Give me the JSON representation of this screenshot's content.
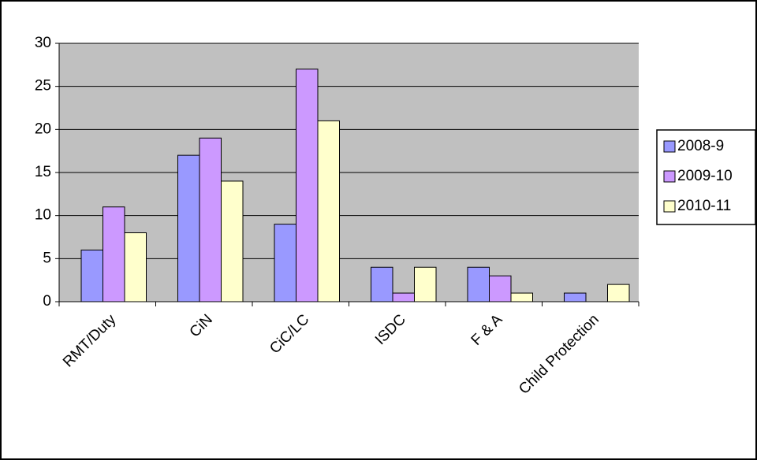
{
  "chart_data": {
    "type": "bar",
    "categories": [
      "RMT/Duty",
      "CiN",
      "CiC/LC",
      "ISDC",
      "F & A",
      "Child Protection"
    ],
    "series": [
      {
        "name": "2008-9",
        "color": "#9999ff",
        "values": [
          6,
          17,
          9,
          4,
          4,
          1
        ]
      },
      {
        "name": "2009-10",
        "color": "#cc99ff",
        "values": [
          11,
          19,
          27,
          1,
          3,
          0
        ]
      },
      {
        "name": "2010-11",
        "color": "#ffffcc",
        "values": [
          8,
          14,
          21,
          4,
          1,
          2
        ]
      }
    ],
    "ylim": [
      0,
      30
    ],
    "yticks": [
      0,
      5,
      10,
      15,
      20,
      25,
      30
    ],
    "grid": true,
    "legend": "right"
  }
}
